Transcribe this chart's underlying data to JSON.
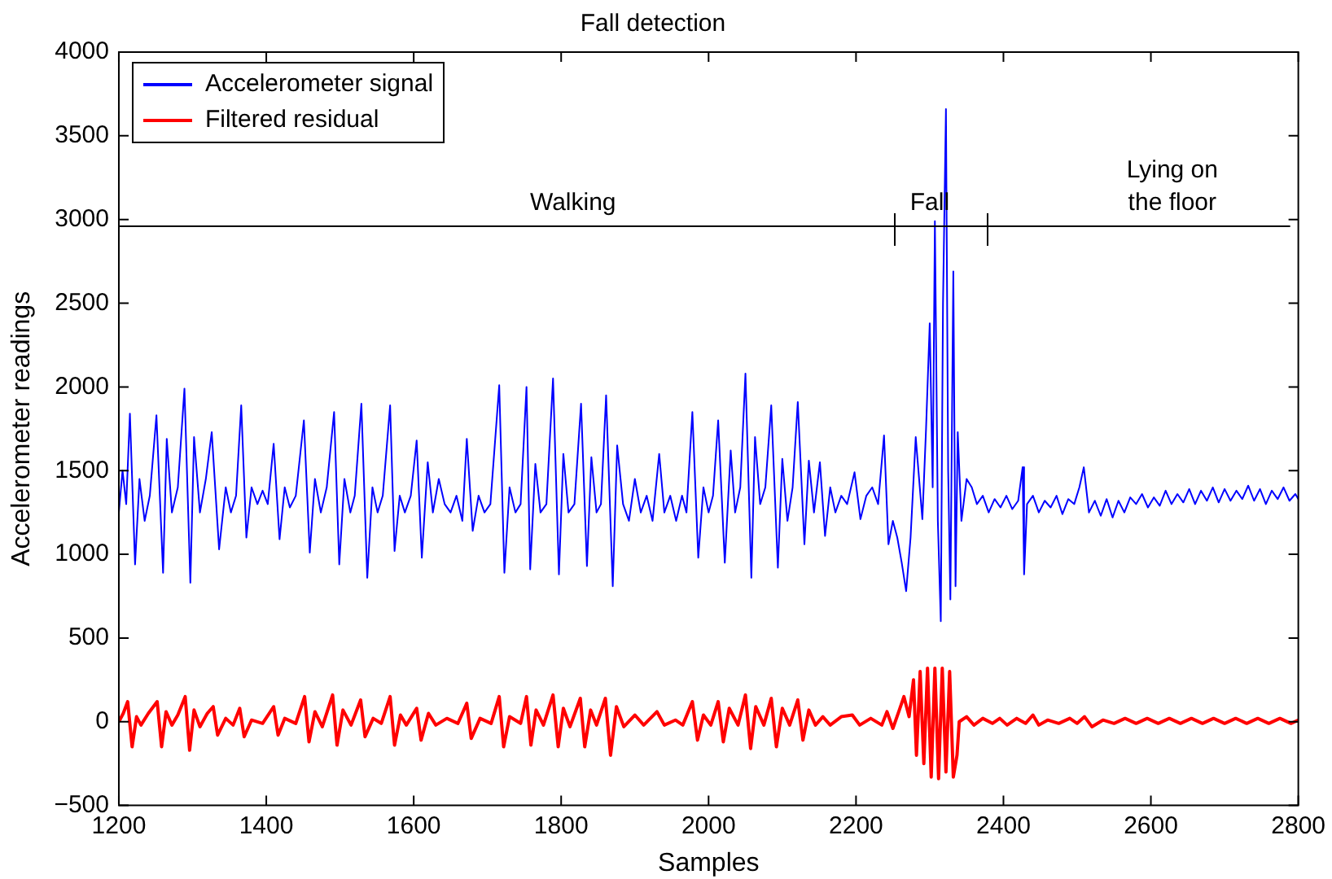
{
  "chart_data": {
    "type": "line",
    "title": "Fall detection",
    "xlabel": "Samples",
    "ylabel": "Accelerometer readings",
    "xlim": [
      1200,
      2800
    ],
    "xticks": [
      1200,
      1400,
      1600,
      1800,
      2000,
      2200,
      2400,
      2600,
      2800
    ],
    "ylim": [
      -500,
      4000
    ],
    "yticks": [
      -500,
      0,
      500,
      1000,
      1500,
      2000,
      2500,
      3000,
      3500,
      4000
    ],
    "grid": false,
    "legend": "top left",
    "marker": "none",
    "line_style": "solid",
    "series": [
      {
        "name": "Accelerometer signal",
        "color": "#0000ff",
        "x": [
          1200,
          1205,
          1210,
          1215,
          1222,
          1228,
          1235,
          1242,
          1251,
          1260,
          1265,
          1272,
          1280,
          1289,
          1297,
          1302,
          1310,
          1318,
          1326,
          1336,
          1345,
          1352,
          1359,
          1366,
          1373,
          1380,
          1388,
          1395,
          1402,
          1410,
          1418,
          1425,
          1432,
          1440,
          1451,
          1459,
          1466,
          1474,
          1482,
          1492,
          1499,
          1506,
          1514,
          1520,
          1529,
          1537,
          1544,
          1551,
          1558,
          1568,
          1574,
          1581,
          1588,
          1596,
          1604,
          1611,
          1619,
          1626,
          1634,
          1642,
          1650,
          1658,
          1666,
          1672,
          1680,
          1688,
          1696,
          1704,
          1716,
          1723,
          1730,
          1738,
          1745,
          1753,
          1758,
          1765,
          1772,
          1780,
          1789,
          1797,
          1803,
          1810,
          1818,
          1827,
          1835,
          1841,
          1848,
          1854,
          1861,
          1870,
          1876,
          1884,
          1892,
          1900,
          1908,
          1916,
          1924,
          1933,
          1940,
          1948,
          1956,
          1964,
          1970,
          1978,
          1986,
          1993,
          2000,
          2006,
          2013,
          2022,
          2030,
          2036,
          2043,
          2050,
          2058,
          2063,
          2070,
          2077,
          2085,
          2094,
          2100,
          2107,
          2114,
          2121,
          2130,
          2136,
          2143,
          2151,
          2158,
          2165,
          2172,
          2180,
          2188,
          2198,
          2206,
          2214,
          2222,
          2230,
          2238,
          2244,
          2250,
          2256,
          2262,
          2268,
          2274,
          2281,
          2290,
          2295,
          2300,
          2304,
          2307,
          2311,
          2315,
          2318,
          2322,
          2325,
          2328,
          2332,
          2335,
          2338,
          2343,
          2350,
          2357,
          2364,
          2372,
          2380,
          2388,
          2396,
          2404,
          2412,
          2420,
          2426,
          2428,
          2432,
          2440,
          2448,
          2456,
          2464,
          2472,
          2480,
          2488,
          2496,
          2503,
          2509,
          2516,
          2524,
          2532,
          2540,
          2548,
          2556,
          2564,
          2572,
          2580,
          2588,
          2596,
          2604,
          2612,
          2620,
          2628,
          2636,
          2644,
          2652,
          2660,
          2668,
          2676,
          2684,
          2692,
          2700,
          2708,
          2716,
          2724,
          2732,
          2740,
          2748,
          2756,
          2764,
          2772,
          2780,
          2788,
          2796,
          2800
        ],
        "values": [
          1250,
          1500,
          1300,
          1840,
          940,
          1450,
          1200,
          1350,
          1830,
          890,
          1690,
          1250,
          1400,
          1990,
          830,
          1700,
          1250,
          1450,
          1730,
          1030,
          1400,
          1250,
          1350,
          1890,
          1100,
          1400,
          1300,
          1380,
          1300,
          1660,
          1090,
          1400,
          1280,
          1350,
          1800,
          1010,
          1450,
          1250,
          1400,
          1850,
          940,
          1450,
          1250,
          1350,
          1900,
          860,
          1400,
          1250,
          1350,
          1890,
          1020,
          1350,
          1250,
          1350,
          1680,
          980,
          1550,
          1250,
          1450,
          1300,
          1250,
          1350,
          1200,
          1690,
          1140,
          1350,
          1250,
          1300,
          2010,
          890,
          1400,
          1250,
          1300,
          2000,
          910,
          1540,
          1250,
          1300,
          2050,
          880,
          1600,
          1250,
          1300,
          1900,
          930,
          1580,
          1250,
          1300,
          1950,
          810,
          1650,
          1300,
          1200,
          1450,
          1250,
          1350,
          1200,
          1600,
          1250,
          1350,
          1200,
          1350,
          1250,
          1850,
          980,
          1400,
          1250,
          1350,
          1800,
          950,
          1620,
          1250,
          1400,
          2080,
          860,
          1700,
          1300,
          1400,
          1890,
          920,
          1570,
          1200,
          1400,
          1910,
          1060,
          1560,
          1250,
          1550,
          1110,
          1400,
          1250,
          1350,
          1300,
          1490,
          1210,
          1350,
          1400,
          1300,
          1710,
          1060,
          1200,
          1100,
          950,
          780,
          1100,
          1700,
          1210,
          1750,
          2380,
          1400,
          2990,
          1200,
          600,
          2500,
          3660,
          1500,
          730,
          2690,
          810,
          1730,
          1200,
          1450,
          1400,
          1300,
          1350,
          1250,
          1330,
          1280,
          1350,
          1270,
          1320,
          1520,
          880,
          1300,
          1350,
          1250,
          1320,
          1280,
          1350,
          1240,
          1330,
          1300,
          1400,
          1520,
          1250,
          1320,
          1230,
          1330,
          1220,
          1320,
          1250,
          1340,
          1300,
          1360,
          1280,
          1340,
          1290,
          1380,
          1300,
          1360,
          1310,
          1390,
          1300,
          1380,
          1320,
          1400,
          1310,
          1390,
          1320,
          1380,
          1330,
          1410,
          1320,
          1390,
          1300,
          1380,
          1330,
          1400,
          1320,
          1360,
          1330
        ]
      },
      {
        "name": "Filtered residual",
        "color": "#ff0000",
        "x": [
          1200,
          1206,
          1212,
          1218,
          1224,
          1230,
          1240,
          1252,
          1258,
          1264,
          1272,
          1280,
          1290,
          1296,
          1302,
          1310,
          1320,
          1328,
          1334,
          1345,
          1355,
          1364,
          1370,
          1380,
          1395,
          1410,
          1416,
          1425,
          1440,
          1452,
          1458,
          1466,
          1476,
          1490,
          1496,
          1504,
          1515,
          1528,
          1534,
          1545,
          1556,
          1568,
          1574,
          1582,
          1590,
          1604,
          1610,
          1620,
          1630,
          1645,
          1660,
          1672,
          1678,
          1690,
          1705,
          1716,
          1722,
          1730,
          1745,
          1753,
          1759,
          1766,
          1776,
          1789,
          1796,
          1803,
          1812,
          1826,
          1832,
          1840,
          1848,
          1860,
          1867,
          1875,
          1885,
          1900,
          1912,
          1930,
          1940,
          1955,
          1965,
          1978,
          1985,
          1993,
          2003,
          2013,
          2020,
          2028,
          2040,
          2050,
          2057,
          2064,
          2075,
          2085,
          2092,
          2100,
          2110,
          2121,
          2128,
          2136,
          2145,
          2155,
          2165,
          2180,
          2195,
          2205,
          2220,
          2235,
          2242,
          2250,
          2258,
          2265,
          2272,
          2278,
          2282,
          2287,
          2292,
          2297,
          2302,
          2307,
          2312,
          2317,
          2322,
          2327,
          2332,
          2337,
          2340,
          2350,
          2360,
          2372,
          2385,
          2395,
          2405,
          2418,
          2430,
          2440,
          2448,
          2460,
          2475,
          2490,
          2500,
          2510,
          2520,
          2535,
          2550,
          2565,
          2580,
          2595,
          2610,
          2625,
          2640,
          2655,
          2670,
          2685,
          2700,
          2715,
          2730,
          2745,
          2760,
          2775,
          2790,
          2800
        ],
        "values": [
          0,
          50,
          120,
          -150,
          30,
          -20,
          50,
          120,
          -150,
          60,
          -20,
          40,
          150,
          -170,
          70,
          -30,
          50,
          90,
          -80,
          20,
          -20,
          80,
          -90,
          10,
          -10,
          90,
          -80,
          20,
          -10,
          150,
          -120,
          60,
          -30,
          160,
          -140,
          70,
          -20,
          130,
          -90,
          20,
          -10,
          150,
          -140,
          40,
          -20,
          80,
          -110,
          50,
          -20,
          20,
          -10,
          110,
          -100,
          20,
          -10,
          150,
          -150,
          30,
          -10,
          150,
          -140,
          70,
          -20,
          160,
          -150,
          80,
          -30,
          140,
          -150,
          70,
          -20,
          140,
          -200,
          90,
          -30,
          40,
          -20,
          60,
          -20,
          10,
          -20,
          120,
          -110,
          40,
          -20,
          120,
          -120,
          80,
          -20,
          160,
          -160,
          90,
          -20,
          140,
          -150,
          80,
          -20,
          130,
          -110,
          70,
          -20,
          30,
          -20,
          30,
          40,
          -20,
          20,
          -20,
          60,
          -40,
          60,
          150,
          30,
          250,
          -200,
          300,
          -250,
          320,
          -330,
          320,
          -340,
          320,
          -300,
          300,
          -330,
          -200,
          0,
          30,
          -20,
          20,
          -10,
          20,
          -20,
          20,
          -10,
          40,
          -20,
          10,
          -10,
          20,
          -10,
          30,
          -30,
          10,
          -10,
          20,
          -10,
          20,
          -10,
          20,
          -10,
          20,
          -10,
          20,
          -10,
          20,
          -10,
          20,
          -10,
          20,
          -10,
          10
        ]
      }
    ],
    "ref_lines": [
      {
        "axis": "y",
        "value": 2960,
        "color": "#000000"
      }
    ],
    "annotations": [
      {
        "text": "Walking",
        "x": 1816,
        "y": 2960
      },
      {
        "text": "Fall",
        "x": 2300,
        "y": 2960
      },
      {
        "text": "Lying on the floor",
        "x": 2629,
        "y": 2960
      }
    ]
  }
}
